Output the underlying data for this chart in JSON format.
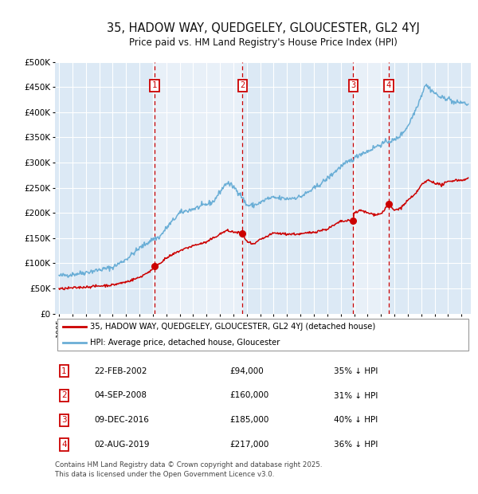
{
  "title": "35, HADOW WAY, QUEDGELEY, GLOUCESTER, GL2 4YJ",
  "subtitle": "Price paid vs. HM Land Registry's House Price Index (HPI)",
  "background_color": "#ffffff",
  "plot_bg_color": "#dce9f5",
  "grid_color": "#ffffff",
  "house_color": "#cc0000",
  "hpi_color": "#6aaed6",
  "sale_marker_color": "#cc0000",
  "vline_color": "#cc0000",
  "ylim": [
    0,
    500000
  ],
  "yticks": [
    0,
    50000,
    100000,
    150000,
    200000,
    250000,
    300000,
    350000,
    400000,
    450000,
    500000
  ],
  "ytick_labels": [
    "£0",
    "£50K",
    "£100K",
    "£150K",
    "£200K",
    "£250K",
    "£300K",
    "£350K",
    "£400K",
    "£450K",
    "£500K"
  ],
  "xlim_start": 1994.7,
  "xlim_end": 2025.7,
  "xticks": [
    1995,
    1996,
    1997,
    1998,
    1999,
    2000,
    2001,
    2002,
    2003,
    2004,
    2005,
    2006,
    2007,
    2008,
    2009,
    2010,
    2011,
    2012,
    2013,
    2014,
    2015,
    2016,
    2017,
    2018,
    2019,
    2020,
    2021,
    2022,
    2023,
    2024,
    2025
  ],
  "sale_events": [
    {
      "num": 1,
      "year": 2002.13,
      "price": 94000,
      "label": "22-FEB-2002",
      "pct": "35%"
    },
    {
      "num": 2,
      "year": 2008.67,
      "price": 160000,
      "label": "04-SEP-2008",
      "pct": "31%"
    },
    {
      "num": 3,
      "year": 2016.94,
      "price": 185000,
      "label": "09-DEC-2016",
      "pct": "40%"
    },
    {
      "num": 4,
      "year": 2019.58,
      "price": 217000,
      "label": "02-AUG-2019",
      "pct": "36%"
    }
  ],
  "legend_house_label": "35, HADOW WAY, QUEDGELEY, GLOUCESTER, GL2 4YJ (detached house)",
  "legend_hpi_label": "HPI: Average price, detached house, Gloucester",
  "footer": "Contains HM Land Registry data © Crown copyright and database right 2025.\nThis data is licensed under the Open Government Licence v3.0."
}
